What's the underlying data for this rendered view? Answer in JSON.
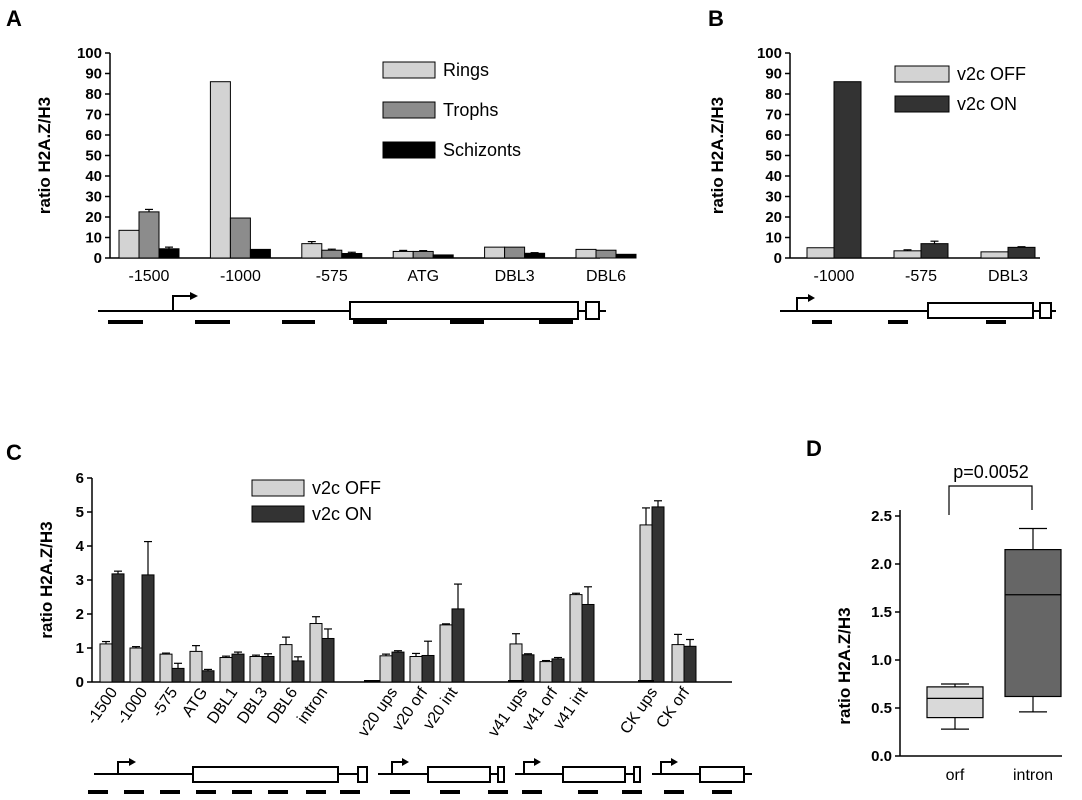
{
  "panels": {
    "A": "A",
    "B": "B",
    "C": "C",
    "D": "D"
  },
  "colors": {
    "light": "#d3d3d3",
    "mid": "#8c8c8c",
    "dark": "#333333",
    "black": "#000000",
    "box_light": "#d9d9d9",
    "box_dark": "#666666"
  },
  "chart_data": [
    {
      "panel": "A",
      "type": "bar",
      "ylabel": "ratio H2A.Z/H3",
      "ylim": [
        0,
        100
      ],
      "yticks": [
        "0",
        "10",
        "20",
        "30",
        "40",
        "50",
        "60",
        "70",
        "80",
        "90",
        "100"
      ],
      "categories": [
        "-1500",
        "-1000",
        "-575",
        "ATG",
        "DBL3",
        "DBL6"
      ],
      "series": [
        {
          "name": "Rings",
          "values": [
            13.5,
            86,
            7,
            3.2,
            5.3,
            4.2
          ],
          "errors": [
            0,
            0,
            1,
            0.5,
            0,
            0
          ]
        },
        {
          "name": "Trophs",
          "values": [
            22.5,
            19.5,
            3.8,
            3.2,
            5.3,
            3.8
          ],
          "errors": [
            1.2,
            0,
            0.5,
            0.4,
            0,
            0
          ]
        },
        {
          "name": "Schizonts",
          "values": [
            4.5,
            4.2,
            2.2,
            1.5,
            2.3,
            1.8
          ],
          "errors": [
            0.8,
            0,
            0.6,
            0,
            0.3,
            0
          ]
        }
      ],
      "legend_position": "top-right"
    },
    {
      "panel": "B",
      "type": "bar",
      "ylabel": "ratio H2A.Z/H3",
      "ylim": [
        0,
        100
      ],
      "yticks": [
        "0",
        "10",
        "20",
        "30",
        "40",
        "50",
        "60",
        "70",
        "80",
        "90",
        "100"
      ],
      "categories": [
        "-1000",
        "-575",
        "DBL3"
      ],
      "series": [
        {
          "name": "v2c OFF",
          "values": [
            5,
            3.5,
            3
          ],
          "errors": [
            0,
            0.5,
            0
          ]
        },
        {
          "name": "v2c ON",
          "values": [
            86,
            7,
            5.2
          ],
          "errors": [
            0,
            1.2,
            0.3
          ]
        }
      ],
      "legend_position": "top-right"
    },
    {
      "panel": "C",
      "type": "bar",
      "ylabel": "ratio H2A.Z/H3",
      "ylim": [
        0,
        6
      ],
      "yticks": [
        "0",
        "1",
        "2",
        "3",
        "4",
        "5",
        "6"
      ],
      "categories": [
        "-1500",
        "-1000",
        "-575",
        "ATG",
        "DBL1",
        "DBL3",
        "DBL6",
        "intron",
        "v20 ups",
        "v20 orf",
        "v20 int",
        "v41 ups",
        "v41 orf",
        "v41 int",
        "CK ups",
        "CK orf"
      ],
      "series": [
        {
          "name": "v2c OFF",
          "values": [
            1.12,
            1.0,
            0.82,
            0.9,
            0.72,
            0.75,
            1.1,
            1.72,
            0.77,
            0.75,
            1.68,
            1.12,
            0.6,
            2.57,
            4.62,
            1.1
          ],
          "errors": [
            0.07,
            0.04,
            0.03,
            0.17,
            0.04,
            0.04,
            0.22,
            0.2,
            0.05,
            0.09,
            0.03,
            0.3,
            0.03,
            0.04,
            0.5,
            0.3
          ]
        },
        {
          "name": "v2c ON",
          "values": [
            3.18,
            3.15,
            0.4,
            0.33,
            0.82,
            0.75,
            0.62,
            1.28,
            0.88,
            0.78,
            2.15,
            0.8,
            0.68,
            2.28,
            5.15,
            1.05
          ],
          "errors": [
            0.08,
            0.98,
            0.15,
            0.04,
            0.06,
            0.08,
            0.12,
            0.28,
            0.04,
            0.42,
            0.73,
            0.03,
            0.04,
            0.52,
            0.18,
            0.2
          ]
        }
      ],
      "legend_position": "top-center"
    },
    {
      "panel": "D",
      "type": "box",
      "ylabel": "ratio H2A.Z/H3",
      "ylim": [
        0,
        2.5
      ],
      "yticks": [
        "0.0",
        "0.5",
        "1.0",
        "1.5",
        "2.0",
        "2.5"
      ],
      "categories": [
        "orf",
        "intron"
      ],
      "boxes": [
        {
          "min": 0.28,
          "q1": 0.4,
          "median": 0.6,
          "q3": 0.72,
          "max": 0.75
        },
        {
          "min": 0.46,
          "q1": 0.62,
          "median": 1.68,
          "q3": 2.15,
          "max": 2.37
        }
      ],
      "annotation": "p=0.0052"
    }
  ]
}
